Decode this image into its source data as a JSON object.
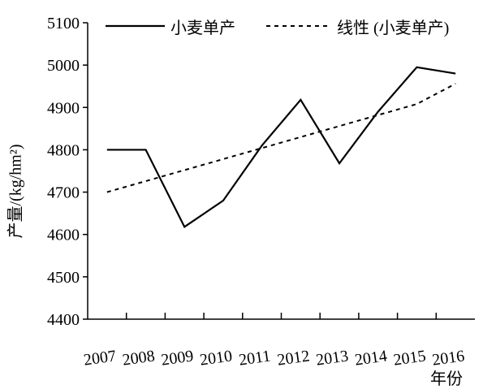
{
  "chart_data": {
    "type": "line",
    "x": [
      "2007",
      "2008",
      "2009",
      "2010",
      "2011",
      "2012",
      "2013",
      "2014",
      "2015",
      "2016"
    ],
    "series": [
      {
        "name": "小麦单产",
        "style": "solid",
        "color": "#000000",
        "values": [
          4800,
          4800,
          4618,
          4680,
          4810,
          4918,
          4768,
          4890,
          4995,
          4980
        ]
      },
      {
        "name": "线性 (小麦单产)",
        "style": "dashed",
        "color": "#000000",
        "values": [
          4700,
          4726,
          4752,
          4778,
          4804,
          4830,
          4856,
          4882,
          4908,
          4956
        ]
      }
    ],
    "ylabel": "产量/(kg/hm²)",
    "xlabel": "年份",
    "ylim": [
      4400,
      5100
    ],
    "yticks": [
      "4400",
      "4500",
      "4600",
      "4700",
      "4800",
      "4900",
      "5000",
      "5100"
    ],
    "grid": false,
    "legend_position": "top"
  }
}
